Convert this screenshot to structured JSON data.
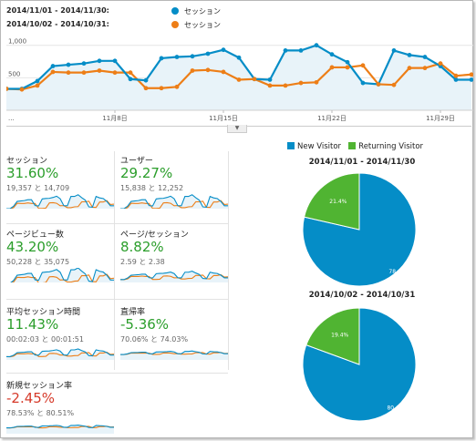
{
  "legend": {
    "rows": [
      {
        "range": "2014/11/01 - 2014/11/30:",
        "metric": "セッション",
        "color": "#058dc7"
      },
      {
        "range": "2014/10/02 - 2014/10/31:",
        "metric": "セッション",
        "color": "#ed7e17"
      }
    ]
  },
  "chart_data": [
    {
      "type": "area",
      "y_ticks": [
        "1,000",
        "500"
      ],
      "x_ticks": [
        "...",
        "11月8日",
        "11月15日",
        "11月22日",
        "11月29日"
      ],
      "ylim": [
        0,
        1150
      ],
      "series": [
        {
          "color": "#058dc7",
          "values": [
            330,
            330,
            450,
            680,
            700,
            720,
            760,
            760,
            480,
            460,
            800,
            820,
            830,
            870,
            930,
            810,
            480,
            470,
            920,
            920,
            1000,
            860,
            740,
            420,
            400,
            920,
            850,
            820,
            680,
            470,
            470
          ]
        },
        {
          "color": "#ed7e17",
          "values": [
            330,
            320,
            380,
            590,
            580,
            580,
            610,
            580,
            580,
            340,
            340,
            360,
            610,
            620,
            590,
            470,
            480,
            380,
            380,
            420,
            430,
            660,
            660,
            690,
            400,
            390,
            650,
            650,
            720,
            530,
            550
          ]
        }
      ]
    },
    {
      "type": "pie",
      "title": "2014/11/01 - 2014/11/30",
      "categories": [
        "New Visitor",
        "Returning Visitor"
      ],
      "values": [
        78.6,
        21.4
      ],
      "labels": [
        "78.6%",
        "21.4%"
      ]
    },
    {
      "type": "pie",
      "title": "2014/10/02 - 2014/10/31",
      "categories": [
        "New Visitor",
        "Returning Visitor"
      ],
      "values": [
        80.6,
        19.4
      ],
      "labels": [
        "80.6%",
        "19.4%"
      ]
    }
  ],
  "pie_legend": [
    {
      "name": "New Visitor",
      "color": "#058dc7"
    },
    {
      "name": "Returning Visitor",
      "color": "#50b432"
    }
  ],
  "metrics": [
    {
      "label": "セッション",
      "value": "31.60%",
      "trend": "up",
      "sub": "19,357 と 14,709"
    },
    {
      "label": "ユーザー",
      "value": "29.27%",
      "trend": "up",
      "sub": "15,838 と 12,252"
    },
    {
      "label": "ページビュー数",
      "value": "43.20%",
      "trend": "up",
      "sub": "50,228 と 35,075"
    },
    {
      "label": "ページ/セッション",
      "value": "8.82%",
      "trend": "up",
      "sub": "2.59 と 2.38"
    },
    {
      "label": "平均セッション時間",
      "value": "11.43%",
      "trend": "up",
      "sub": "00:02:03 と 00:01:51"
    },
    {
      "label": "直帰率",
      "value": "-5.36%",
      "trend": "up",
      "sub": "70.06% と 74.03%"
    },
    {
      "label": "新規セッション率",
      "value": "-2.45%",
      "trend": "down",
      "sub": "78.53% と 80.51%"
    }
  ],
  "colors": {
    "current": "#058dc7",
    "previous": "#ed7e17",
    "returning": "#50b432"
  }
}
